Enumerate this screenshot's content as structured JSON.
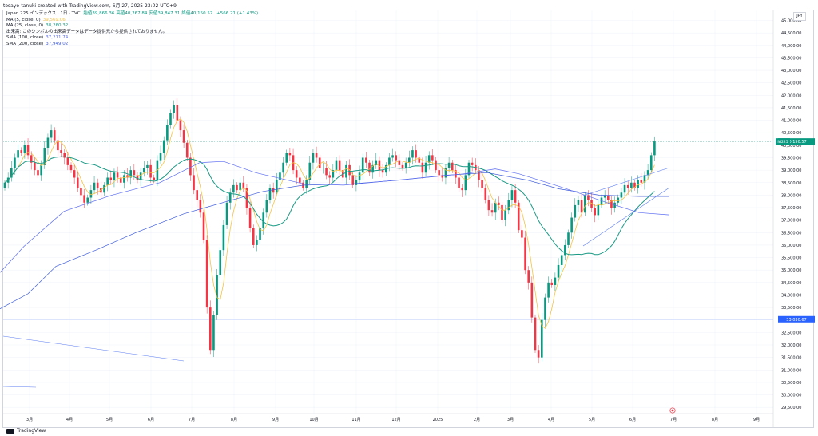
{
  "header": {
    "credit": "tosayo-tanuki created with TradingView.com, 6月 27, 2025 23:02 UTC+9"
  },
  "legend": {
    "symbol": "Japan 225 インデックス · 1日 · TVC",
    "ohlc": [
      {
        "label": "始値",
        "value": "39,866.36"
      },
      {
        "label": "高値",
        "value": "40,267.84"
      },
      {
        "label": "安値",
        "value": "39,847.31"
      },
      {
        "label": "終値",
        "value": "40,150.57"
      }
    ],
    "change": "+566.21 (+1.43%)",
    "indicators": [
      {
        "name": "MA (5, close, 0)",
        "value": "39,569.06",
        "color": "#f5c242"
      },
      {
        "name": "MA (25, close, 0)",
        "value": "38,260.32",
        "color": "#1b9a85"
      },
      {
        "name": "出来高: このシンボルの出来高データはデータ提供元から提供されておりません。",
        "value": "",
        "color": "#131722"
      },
      {
        "name": "SMA (100, close)",
        "value": "37,211.74",
        "color": "#5b6cf0"
      },
      {
        "name": "SMA (200, close)",
        "value": "37,949.02",
        "color": "#3d5bd9"
      }
    ]
  },
  "axis": {
    "currency": "JPY",
    "y_ticks": [
      "45,000.00",
      "44,500.00",
      "44,000.00",
      "43,500.00",
      "43,000.00",
      "42,500.00",
      "42,000.00",
      "41,500.00",
      "41,000.00",
      "40,500.00",
      "40,000.00",
      "39,500.00",
      "39,000.00",
      "38,500.00",
      "38,000.00",
      "37,500.00",
      "37,000.00",
      "36,500.00",
      "36,000.00",
      "35,500.00",
      "35,000.00",
      "34,500.00",
      "34,000.00",
      "33,500.00",
      "33,000.00",
      "32,500.00",
      "32,000.00",
      "31,500.00",
      "31,000.00",
      "30,500.00",
      "30,000.00",
      "29,500.00"
    ],
    "x_ticks": [
      "3月",
      "4月",
      "5月",
      "6月",
      "7月",
      "8月",
      "9月",
      "10月",
      "11月",
      "12月",
      "2025",
      "2月",
      "3月",
      "4月",
      "5月",
      "6月",
      "7月",
      "8月",
      "9月"
    ],
    "price_tag_symbol": "NI225",
    "price_tag_value": "40,150.57",
    "line_tag_value": "33,030.67"
  },
  "footer": {
    "brand": "TradingView"
  },
  "chart_data": {
    "type": "candlestick",
    "ylim": [
      29250,
      45400
    ],
    "grid": true,
    "horizontal_level": 33030.67,
    "last_price": 40150.57,
    "colors": {
      "up": "#089981",
      "down": "#f23645",
      "ma5": "#f5c242",
      "ma25": "#1b9a85",
      "sma100": "#5b6cf0",
      "sma200": "#3d5bd9"
    },
    "closes": [
      38500,
      38700,
      39100,
      39500,
      39800,
      39700,
      40000,
      39600,
      39300,
      39000,
      38800,
      39200,
      39900,
      40300,
      40600,
      40200,
      39800,
      39700,
      39500,
      39200,
      39000,
      38700,
      38300,
      38000,
      37700,
      37900,
      38200,
      38500,
      38300,
      38100,
      38400,
      38700,
      38600,
      38900,
      38700,
      38500,
      38800,
      38700,
      39000,
      38800,
      38600,
      38900,
      39100,
      39200,
      38700,
      38600,
      39400,
      39700,
      40200,
      40800,
      41300,
      41600,
      41000,
      40600,
      40100,
      39500,
      38800,
      38200,
      37800,
      37300,
      36200,
      33500,
      31800,
      33200,
      34800,
      35800,
      36800,
      37700,
      38100,
      38400,
      38200,
      38500,
      38300,
      37500,
      36700,
      36000,
      36200,
      36700,
      37300,
      37800,
      38300,
      38100,
      38600,
      38900,
      39300,
      39700,
      39600,
      39000,
      38700,
      38500,
      38300,
      38600,
      39300,
      39700,
      39500,
      39100,
      39100,
      38800,
      38700,
      39000,
      39400,
      39000,
      38700,
      39200,
      38800,
      38400,
      38600,
      38900,
      39500,
      39300,
      38900,
      39200,
      39400,
      39000,
      38900,
      39200,
      39500,
      39600,
      39400,
      39200,
      39100,
      39300,
      39500,
      39800,
      39500,
      39300,
      38900,
      39300,
      39600,
      39400,
      39000,
      38800,
      38700,
      39100,
      39300,
      39000,
      38700,
      38300,
      38200,
      38800,
      39300,
      39200,
      39000,
      38600,
      38300,
      37800,
      37400,
      37300,
      37700,
      37600,
      37000,
      37400,
      37800,
      38200,
      37700,
      36600,
      36300,
      35000,
      34500,
      33100,
      31800,
      31500,
      33000,
      33900,
      34500,
      34400,
      34700,
      35200,
      35600,
      36000,
      36500,
      37100,
      37600,
      37800,
      37300,
      38000,
      37800,
      37500,
      37200,
      37600,
      37900,
      38000,
      37800,
      37500,
      37700,
      37900,
      38100,
      38400,
      38300,
      38500,
      38300,
      38600,
      38500,
      38800,
      39000,
      39600,
      40150.57
    ],
    "sma200": [
      [
        0,
        33450
      ],
      [
        35,
        34050
      ],
      [
        70,
        35150
      ],
      [
        120,
        35800
      ],
      [
        170,
        36500
      ],
      [
        230,
        37250
      ],
      [
        290,
        37800
      ],
      [
        330,
        38150
      ],
      [
        380,
        38400
      ],
      [
        440,
        38450
      ],
      [
        500,
        38600
      ],
      [
        560,
        38800
      ],
      [
        610,
        38900
      ],
      [
        660,
        38600
      ],
      [
        700,
        38250
      ],
      [
        750,
        38000
      ],
      [
        800,
        37950
      ],
      [
        838,
        37950
      ]
    ],
    "sma100": [
      [
        0,
        34900
      ],
      [
        30,
        35950
      ],
      [
        80,
        37350
      ],
      [
        140,
        38000
      ],
      [
        200,
        38500
      ],
      [
        250,
        39300
      ],
      [
        280,
        39350
      ],
      [
        320,
        38900
      ],
      [
        380,
        38450
      ],
      [
        430,
        38400
      ],
      [
        480,
        38550
      ],
      [
        530,
        38700
      ],
      [
        580,
        38850
      ],
      [
        620,
        39050
      ],
      [
        650,
        38850
      ],
      [
        700,
        38350
      ],
      [
        760,
        37700
      ],
      [
        800,
        37300
      ],
      [
        838,
        37210
      ]
    ]
  }
}
